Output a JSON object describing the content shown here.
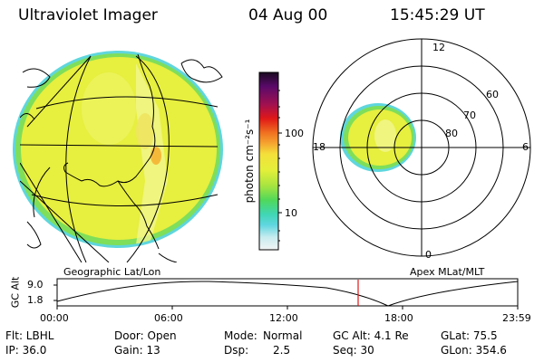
{
  "header": {
    "instrument": "Ultraviolet Imager",
    "date": "04 Aug 00",
    "time": "15:45:29 UT"
  },
  "colorbar": {
    "label": "photon cm⁻²s⁻¹",
    "ticks": [
      "100",
      "10"
    ]
  },
  "polar": {
    "mlt_labels": [
      "12",
      "18",
      "6",
      "0"
    ],
    "lat_labels": [
      "60",
      "70",
      "80"
    ]
  },
  "panels": {
    "geo_title": "Geographic Lat/Lon",
    "apex_title": "Apex MLat/MLT"
  },
  "timeline": {
    "ylabel": "GC Alt",
    "yticks": [
      "9.0",
      "1.8"
    ],
    "xticks": [
      "00:00",
      "06:00",
      "12:00",
      "18:00",
      "23:59"
    ],
    "current_marker_time": "15:45"
  },
  "info": {
    "row1": {
      "filter": "Flt: LBHL",
      "door": "Door: Open",
      "mode_label": "Mode:",
      "mode_value": "Normal",
      "gc_alt": "GC Alt: 4.1 Re",
      "glat": "GLat:  75.5"
    },
    "row2": {
      "ip": "IP: 36.0",
      "gain": "Gain: 13",
      "dsp_label": "Dsp:",
      "dsp_value": "2.5",
      "seq": "Seq: 30",
      "glon": "GLon: 354.6"
    }
  },
  "colors": {
    "fill_main": "#e7ef3f",
    "fill_light": "#eef56a",
    "fill_edge": "#7fde5a",
    "edge_cyan": "#5fd6dd",
    "marker": "#e01818"
  }
}
